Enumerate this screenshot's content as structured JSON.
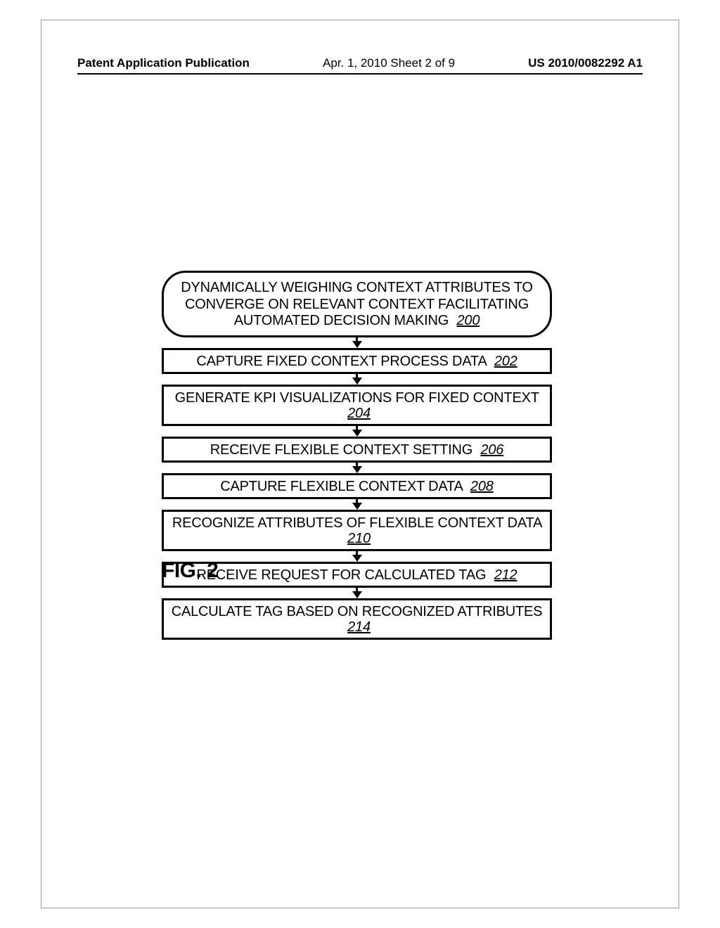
{
  "header": {
    "left": "Patent Application Publication",
    "center": "Apr. 1, 2010  Sheet 2 of 9",
    "right": "US 2010/0082292 A1"
  },
  "flowchart": {
    "terminal": {
      "line1": "DYNAMICALLY WEIGHING CONTEXT ATTRIBUTES TO",
      "line2": "CONVERGE ON RELEVANT CONTEXT FACILITATING",
      "line3": "AUTOMATED DECISION MAKING",
      "ref": "200"
    },
    "steps": [
      {
        "text": "CAPTURE FIXED CONTEXT PROCESS DATA",
        "ref": "202"
      },
      {
        "text": "GENERATE KPI VISUALIZATIONS FOR FIXED CONTEXT",
        "ref": "204"
      },
      {
        "text": "RECEIVE FLEXIBLE CONTEXT SETTING",
        "ref": "206"
      },
      {
        "text": "CAPTURE FLEXIBLE CONTEXT DATA",
        "ref": "208"
      },
      {
        "text": "RECOGNIZE ATTRIBUTES OF FLEXIBLE CONTEXT DATA",
        "ref": "210"
      },
      {
        "text": "RECEIVE REQUEST FOR CALCULATED TAG",
        "ref": "212"
      },
      {
        "text": "CALCULATE TAG BASED ON RECOGNIZED ATTRIBUTES",
        "ref": "214"
      }
    ]
  },
  "figure_label": "FIG. 2",
  "colors": {
    "background": "#ffffff",
    "stroke": "#000000",
    "page_border": "#999999"
  },
  "typography": {
    "header_fontsize": 17,
    "box_fontsize": 20,
    "fig_fontsize": 30
  }
}
